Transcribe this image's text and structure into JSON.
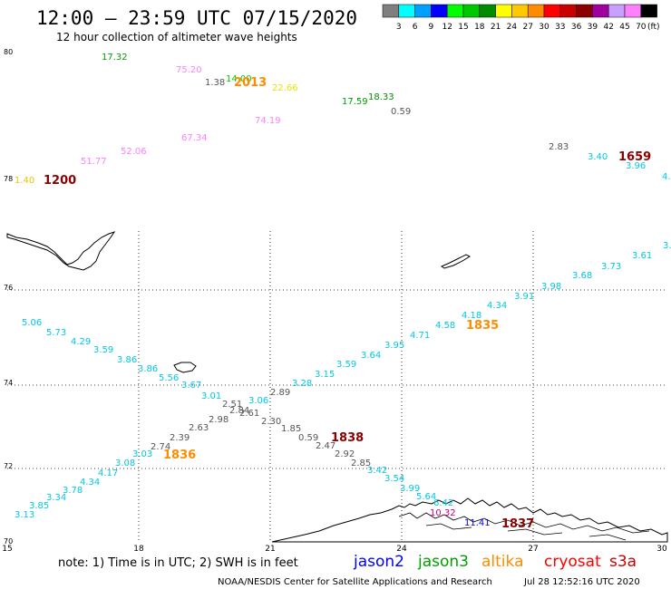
{
  "header": {
    "title": "12:00 – 23:59 UTC 07/15/2020",
    "subtitle": "12 hour collection of altimeter wave heights"
  },
  "colorbar": {
    "unit": "(ft)",
    "bins": [
      {
        "label": "3",
        "color": "#7f7f7f"
      },
      {
        "label": "6",
        "color": "#00ffff"
      },
      {
        "label": "9",
        "color": "#00a0ff"
      },
      {
        "label": "12",
        "color": "#0000ff"
      },
      {
        "label": "15",
        "color": "#00ff00"
      },
      {
        "label": "18",
        "color": "#00c800"
      },
      {
        "label": "21",
        "color": "#008c00"
      },
      {
        "label": "24",
        "color": "#ffff00"
      },
      {
        "label": "27",
        "color": "#ffc800"
      },
      {
        "label": "30",
        "color": "#ff8c00"
      },
      {
        "label": "33",
        "color": "#ff0000"
      },
      {
        "label": "36",
        "color": "#c80000"
      },
      {
        "label": "39",
        "color": "#8c0000"
      },
      {
        "label": "42",
        "color": "#a000a0"
      },
      {
        "label": "45",
        "color": "#c8a0ff"
      },
      {
        "label": "70",
        "color": "#ff80ff"
      },
      {
        "label": "",
        "color": "#000000"
      }
    ]
  },
  "axes": {
    "lat_labels": [
      "80",
      "78",
      "76",
      "74",
      "72",
      "70"
    ],
    "lon_labels": [
      "15",
      "18",
      "21",
      "24",
      "27",
      "30"
    ]
  },
  "time_labels": [
    {
      "text": "2013",
      "color": "#ff8c00"
    },
    {
      "text": "1200",
      "color": "#8c0000"
    },
    {
      "text": "1659",
      "color": "#8c0000"
    },
    {
      "text": "1835",
      "color": "#ff8c00"
    },
    {
      "text": "1838",
      "color": "#8c0000"
    },
    {
      "text": "1836",
      "color": "#ff8c00"
    },
    {
      "text": "1837",
      "color": "#8c0000"
    }
  ],
  "wave_heights": [
    {
      "text": "17.32",
      "color": "#00a000"
    },
    {
      "text": "75.20",
      "color": "#ff80ff"
    },
    {
      "text": "1.38",
      "color": "#555555"
    },
    {
      "text": "14.00",
      "color": "#00c800"
    },
    {
      "text": "22.66",
      "color": "#e6e600"
    },
    {
      "text": "18.33",
      "color": "#008c00"
    },
    {
      "text": "17.59",
      "color": "#00a000"
    },
    {
      "text": "0.59",
      "color": "#555555"
    },
    {
      "text": "74.19",
      "color": "#ff80ff"
    },
    {
      "text": "67.34",
      "color": "#ff80ff"
    },
    {
      "text": "52.06",
      "color": "#ff80ff"
    },
    {
      "text": "51.77",
      "color": "#ff80ff"
    },
    {
      "text": "1.40",
      "color": "#e6c800"
    },
    {
      "text": "2.83",
      "color": "#555555"
    },
    {
      "text": "3.40",
      "color": "#00c8e6"
    },
    {
      "text": "3.96",
      "color": "#00c8e6"
    },
    {
      "text": "4.",
      "color": "#00c8e6"
    },
    {
      "text": "3.",
      "color": "#00c8e6"
    },
    {
      "text": "3.61",
      "color": "#00c8e6"
    },
    {
      "text": "3.73",
      "color": "#00c8e6"
    },
    {
      "text": "3.68",
      "color": "#00c8e6"
    },
    {
      "text": "3.98",
      "color": "#00c8e6"
    },
    {
      "text": "3.91",
      "color": "#00c8e6"
    },
    {
      "text": "4.34",
      "color": "#00c8e6"
    },
    {
      "text": "4.18",
      "color": "#00c8e6"
    },
    {
      "text": "4.58",
      "color": "#00c8e6"
    },
    {
      "text": "4.71",
      "color": "#00c8e6"
    },
    {
      "text": "3.95",
      "color": "#00c8e6"
    },
    {
      "text": "3.64",
      "color": "#00c8e6"
    },
    {
      "text": "3.59",
      "color": "#00c8e6"
    },
    {
      "text": "3.15",
      "color": "#00c8e6"
    },
    {
      "text": "3.28",
      "color": "#00c8e6"
    },
    {
      "text": "2.89",
      "color": "#555555"
    },
    {
      "text": "3.06",
      "color": "#00c8e6"
    },
    {
      "text": "2.51",
      "color": "#555555"
    },
    {
      "text": "2.84",
      "color": "#555555"
    },
    {
      "text": "2.61",
      "color": "#555555"
    },
    {
      "text": "2.98",
      "color": "#555555"
    },
    {
      "text": "2.30",
      "color": "#555555"
    },
    {
      "text": "2.63",
      "color": "#555555"
    },
    {
      "text": "1.85",
      "color": "#555555"
    },
    {
      "text": "0.59",
      "color": "#555555"
    },
    {
      "text": "2.47",
      "color": "#555555"
    },
    {
      "text": "2.39",
      "color": "#555555"
    },
    {
      "text": "2.74",
      "color": "#555555"
    },
    {
      "text": "2.92",
      "color": "#555555"
    },
    {
      "text": "2.85",
      "color": "#555555"
    },
    {
      "text": "3.03",
      "color": "#00c8e6"
    },
    {
      "text": "3.42",
      "color": "#00c8e6"
    },
    {
      "text": "3.54",
      "color": "#00c8e6"
    },
    {
      "text": "3.08",
      "color": "#00c8e6"
    },
    {
      "text": "3.99",
      "color": "#00c8e6"
    },
    {
      "text": "4.17",
      "color": "#00c8e6"
    },
    {
      "text": "4.34",
      "color": "#00c8e6"
    },
    {
      "text": "5.64",
      "color": "#00c8e6"
    },
    {
      "text": "3.78",
      "color": "#00c8e6"
    },
    {
      "text": "6.42",
      "color": "#00c8e6"
    },
    {
      "text": "3.34",
      "color": "#00c8e6"
    },
    {
      "text": "3.85",
      "color": "#00c8e6"
    },
    {
      "text": "3.13",
      "color": "#00c8e6"
    },
    {
      "text": "10.32",
      "color": "#c80080"
    },
    {
      "text": "11.41",
      "color": "#0000ff"
    },
    {
      "text": "5.06",
      "color": "#00c8e6"
    },
    {
      "text": "5.73",
      "color": "#00c8e6"
    },
    {
      "text": "4.29",
      "color": "#00c8e6"
    },
    {
      "text": "3.59",
      "color": "#00c8e6"
    },
    {
      "text": "3.86",
      "color": "#00c8e6"
    },
    {
      "text": "3.86",
      "color": "#00c8e6"
    },
    {
      "text": "5.56",
      "color": "#00c8e6"
    },
    {
      "text": "3.67",
      "color": "#00c8e6"
    },
    {
      "text": "3.01",
      "color": "#00c8e6"
    }
  ],
  "footer": {
    "note": "note: 1) Time is in UTC; 2) SWH is in feet",
    "legend": [
      {
        "text": "jason2",
        "color": "#0000ff"
      },
      {
        "text": "jason3",
        "color": "#00a000"
      },
      {
        "text": "altika",
        "color": "#ff8c00"
      },
      {
        "text": "cryosat",
        "color": "#ff0000"
      },
      {
        "text": "s3a",
        "color": "#c80000"
      }
    ],
    "credit": "NOAA/NESDIS Center for Satellite Applications and Research",
    "timestamp": "Jul 28 12:52:16 UTC 2020"
  },
  "colors": {
    "coast": "#000000",
    "grid": "#000000",
    "title": "#000000"
  }
}
